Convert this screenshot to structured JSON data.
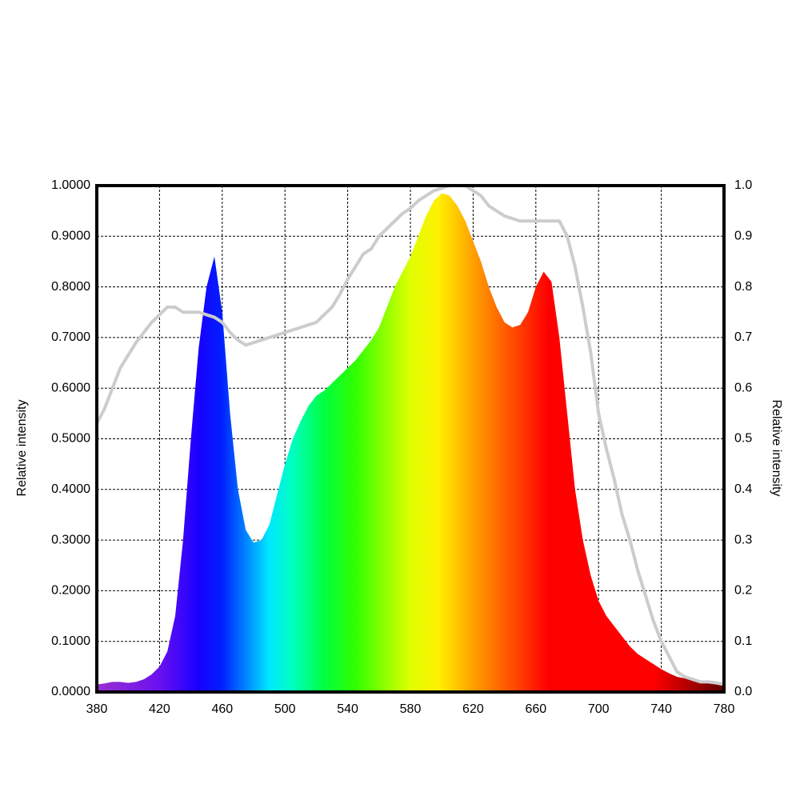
{
  "chart_data": {
    "type": "area",
    "y_label": "Relative intensity",
    "y2_label": "Relative intensity",
    "x": [
      380,
      385,
      390,
      395,
      400,
      405,
      410,
      415,
      420,
      425,
      430,
      435,
      440,
      445,
      450,
      455,
      460,
      465,
      470,
      475,
      480,
      485,
      490,
      495,
      500,
      505,
      510,
      515,
      520,
      525,
      530,
      535,
      540,
      545,
      550,
      555,
      560,
      565,
      570,
      575,
      580,
      585,
      590,
      595,
      600,
      605,
      610,
      615,
      620,
      625,
      630,
      635,
      640,
      645,
      650,
      655,
      660,
      665,
      670,
      675,
      680,
      685,
      690,
      695,
      700,
      705,
      710,
      715,
      720,
      725,
      730,
      735,
      740,
      745,
      750,
      755,
      760,
      765,
      770,
      775,
      780
    ],
    "series": [
      {
        "kind": "area",
        "gradient": [
          {
            "x": 380,
            "color": "#9a30d0"
          },
          {
            "x": 420,
            "color": "#6a10f0"
          },
          {
            "x": 445,
            "color": "#1800ff"
          },
          {
            "x": 460,
            "color": "#0020ff"
          },
          {
            "x": 490,
            "color": "#00e8ff"
          },
          {
            "x": 505,
            "color": "#00ffc0"
          },
          {
            "x": 525,
            "color": "#00ff40"
          },
          {
            "x": 545,
            "color": "#30ff00"
          },
          {
            "x": 580,
            "color": "#e0ff00"
          },
          {
            "x": 598,
            "color": "#fff000"
          },
          {
            "x": 620,
            "color": "#ffa000"
          },
          {
            "x": 650,
            "color": "#ff3c00"
          },
          {
            "x": 668,
            "color": "#ff0000"
          },
          {
            "x": 735,
            "color": "#ff0000"
          },
          {
            "x": 780,
            "color": "#600000"
          }
        ],
        "values": [
          0.015,
          0.017,
          0.02,
          0.02,
          0.018,
          0.02,
          0.025,
          0.035,
          0.05,
          0.08,
          0.15,
          0.3,
          0.5,
          0.68,
          0.8,
          0.86,
          0.75,
          0.55,
          0.4,
          0.32,
          0.295,
          0.3,
          0.33,
          0.39,
          0.45,
          0.5,
          0.535,
          0.565,
          0.585,
          0.595,
          0.61,
          0.625,
          0.64,
          0.655,
          0.675,
          0.695,
          0.72,
          0.76,
          0.8,
          0.83,
          0.86,
          0.9,
          0.94,
          0.97,
          0.985,
          0.98,
          0.96,
          0.93,
          0.89,
          0.85,
          0.8,
          0.76,
          0.73,
          0.72,
          0.725,
          0.75,
          0.8,
          0.83,
          0.81,
          0.7,
          0.55,
          0.4,
          0.3,
          0.23,
          0.18,
          0.15,
          0.13,
          0.11,
          0.09,
          0.075,
          0.065,
          0.055,
          0.045,
          0.037,
          0.03,
          0.027,
          0.025,
          0.022,
          0.02,
          0.017,
          0.015
        ]
      },
      {
        "kind": "line",
        "axis": "y2",
        "color": "#cccccc",
        "values": [
          0.53,
          0.56,
          0.6,
          0.64,
          0.665,
          0.69,
          0.71,
          0.73,
          0.745,
          0.76,
          0.76,
          0.75,
          0.75,
          0.75,
          0.745,
          0.74,
          0.73,
          0.71,
          0.695,
          0.685,
          0.69,
          0.695,
          0.7,
          0.705,
          0.71,
          0.715,
          0.72,
          0.725,
          0.73,
          0.745,
          0.76,
          0.785,
          0.815,
          0.84,
          0.865,
          0.875,
          0.9,
          0.915,
          0.93,
          0.945,
          0.955,
          0.97,
          0.98,
          0.99,
          0.995,
          1.0,
          1.0,
          1.0,
          0.99,
          0.98,
          0.96,
          0.95,
          0.94,
          0.935,
          0.93,
          0.93,
          0.93,
          0.93,
          0.93,
          0.93,
          0.9,
          0.84,
          0.76,
          0.67,
          0.55,
          0.48,
          0.42,
          0.35,
          0.3,
          0.24,
          0.19,
          0.14,
          0.1,
          0.07,
          0.04,
          0.03,
          0.025,
          0.02,
          0.02,
          0.018,
          0.015
        ]
      }
    ],
    "xlim": [
      380,
      780
    ],
    "xticks": [
      380,
      420,
      460,
      500,
      540,
      580,
      620,
      660,
      700,
      740,
      780
    ],
    "ylim": [
      0,
      1
    ],
    "yticks": [
      {
        "value": 0,
        "label": "0.0000"
      },
      {
        "value": 0.1,
        "label": "0.1000"
      },
      {
        "value": 0.2,
        "label": "0.2000"
      },
      {
        "value": 0.3,
        "label": "0.3000"
      },
      {
        "value": 0.4,
        "label": "0.4000"
      },
      {
        "value": 0.5,
        "label": "0.5000"
      },
      {
        "value": 0.6,
        "label": "0.6000"
      },
      {
        "value": 0.7,
        "label": "0.7000"
      },
      {
        "value": 0.8,
        "label": "0.8000"
      },
      {
        "value": 0.9,
        "label": "0.9000"
      },
      {
        "value": 1,
        "label": "1.0000"
      }
    ],
    "y2lim": [
      0,
      1
    ],
    "y2ticks": [
      {
        "value": 0,
        "label": "0.0"
      },
      0.1,
      0.2,
      0.3,
      0.4,
      0.5,
      0.6,
      0.7,
      0.8,
      0.9,
      {
        "value": 1,
        "label": "1.0"
      }
    ],
    "grid": true
  }
}
